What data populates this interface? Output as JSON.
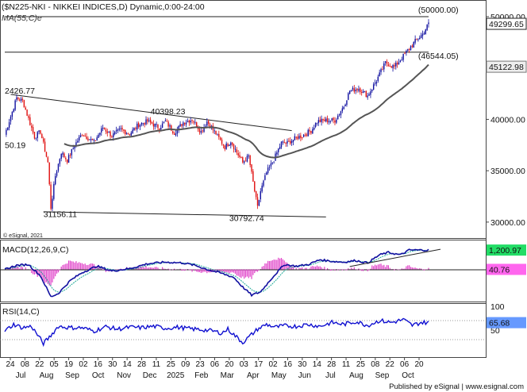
{
  "header": {
    "title": "($N225-NKI - NIKKEI INDICES,D) Dynamic,0:00-24:00",
    "ma_label": "MA(55,C)e"
  },
  "copyright": "© eSignal, 2021",
  "publisher": "Published by eSignal | www.esignal.com",
  "colors": {
    "up": "#1010a0",
    "down": "#e01010",
    "ma": "#555555",
    "macd_line": "#1010a0",
    "signal_line": "#22aa99",
    "histogram": "#e040c8",
    "rsi": "#1010d0",
    "last_price_bg": "#ffffff",
    "macd_value_bg": "#22dd66",
    "macd_hist_bg": "#ff66ee",
    "rsi_value_bg": "#6699ff"
  },
  "chart_data": [
    {
      "type": "candlestick",
      "panel": "price",
      "x_ticks": [
        "24",
        "08",
        "22",
        "05",
        "19",
        "02",
        "16",
        "30",
        "14",
        "28",
        "11",
        "25",
        "09",
        "23",
        "06",
        "20",
        "03",
        "17",
        "02",
        "16",
        "30",
        "14",
        "28",
        "11",
        "25",
        "08",
        "22",
        "06",
        "20"
      ],
      "month_labels": [
        "Jul",
        "Aug",
        "Sep",
        "Oct",
        "Nov",
        "Dec",
        "2025",
        "Feb",
        "Mar",
        "Apr",
        "May",
        "Jun",
        "Jul",
        "Aug",
        "Sep",
        "Oct"
      ],
      "y_ticks": [
        "50000.00",
        "45000.00",
        "40000.00",
        "35000.00",
        "30000.00"
      ],
      "ylim": [
        28600,
        51000
      ],
      "last_price": "49299.65",
      "ma_value": "45122.98",
      "ma_period": 55,
      "anchors": [
        {
          "i": 0,
          "v": 38500
        },
        {
          "i": 8,
          "v": 42100
        },
        {
          "i": 12,
          "v": 41800
        },
        {
          "i": 20,
          "v": 38300
        },
        {
          "i": 24,
          "v": 38800
        },
        {
          "i": 29,
          "v": 35800
        },
        {
          "i": 31,
          "v": 31400
        },
        {
          "i": 34,
          "v": 34500
        },
        {
          "i": 38,
          "v": 36800
        },
        {
          "i": 42,
          "v": 36000
        },
        {
          "i": 47,
          "v": 37500
        },
        {
          "i": 52,
          "v": 38600
        },
        {
          "i": 60,
          "v": 37800
        },
        {
          "i": 66,
          "v": 39200
        },
        {
          "i": 72,
          "v": 38400
        },
        {
          "i": 78,
          "v": 39000
        },
        {
          "i": 84,
          "v": 38600
        },
        {
          "i": 90,
          "v": 39500
        },
        {
          "i": 96,
          "v": 39800
        },
        {
          "i": 104,
          "v": 39200
        },
        {
          "i": 108,
          "v": 39800
        },
        {
          "i": 114,
          "v": 38700
        },
        {
          "i": 120,
          "v": 39700
        },
        {
          "i": 126,
          "v": 40000
        },
        {
          "i": 132,
          "v": 38800
        },
        {
          "i": 136,
          "v": 39800
        },
        {
          "i": 142,
          "v": 38600
        },
        {
          "i": 148,
          "v": 37300
        },
        {
          "i": 152,
          "v": 37900
        },
        {
          "i": 156,
          "v": 36800
        },
        {
          "i": 160,
          "v": 35800
        },
        {
          "i": 164,
          "v": 36400
        },
        {
          "i": 168,
          "v": 33000
        },
        {
          "i": 170,
          "v": 31400
        },
        {
          "i": 172,
          "v": 33000
        },
        {
          "i": 176,
          "v": 34800
        },
        {
          "i": 180,
          "v": 35800
        },
        {
          "i": 186,
          "v": 37700
        },
        {
          "i": 190,
          "v": 37700
        },
        {
          "i": 196,
          "v": 38200
        },
        {
          "i": 200,
          "v": 38400
        },
        {
          "i": 206,
          "v": 38900
        },
        {
          "i": 210,
          "v": 39800
        },
        {
          "i": 216,
          "v": 39900
        },
        {
          "i": 222,
          "v": 39900
        },
        {
          "i": 228,
          "v": 41300
        },
        {
          "i": 232,
          "v": 42800
        },
        {
          "i": 238,
          "v": 43000
        },
        {
          "i": 244,
          "v": 42300
        },
        {
          "i": 250,
          "v": 43800
        },
        {
          "i": 256,
          "v": 45500
        },
        {
          "i": 262,
          "v": 45100
        },
        {
          "i": 266,
          "v": 45800
        },
        {
          "i": 272,
          "v": 46900
        },
        {
          "i": 276,
          "v": 47600
        },
        {
          "i": 281,
          "v": 48300
        },
        {
          "i": 285,
          "v": 49300
        }
      ],
      "trendlines": [
        {
          "from": [
            4,
            42427
          ],
          "to": [
            193,
            38900
          ]
        },
        {
          "from": [
            26,
            31000
          ],
          "to": [
            216,
            30500
          ]
        },
        {
          "from": [
            0,
            50000
          ],
          "to": [
            285,
            50000
          ]
        },
        {
          "from": [
            0,
            46544
          ],
          "to": [
            285,
            46544
          ]
        }
      ],
      "annotations": [
        {
          "text": "2426.77",
          "i": 0,
          "v": 42500
        },
        {
          "text": "40398.23",
          "i": 98,
          "v": 40500
        },
        {
          "text": "31156.11",
          "i": 26,
          "v": 30500
        },
        {
          "text": "30792.74",
          "i": 151,
          "v": 30100
        },
        {
          "text": "50.19",
          "i": 0,
          "v": 37200
        },
        {
          "text": "(50000.00)",
          "i": 278,
          "v": 50400
        },
        {
          "text": "(46544.05)",
          "i": 278,
          "v": 45900
        }
      ]
    },
    {
      "type": "line",
      "panel": "macd",
      "name": "MACD(12,26,9,C)",
      "y_ticks": [],
      "macd_value": "1,200.97",
      "hist_value": "40.76",
      "anchors": [
        {
          "i": 0,
          "v": 0
        },
        {
          "i": 8,
          "v": 250
        },
        {
          "i": 16,
          "v": 300
        },
        {
          "i": 24,
          "v": -400
        },
        {
          "i": 31,
          "v": -1700
        },
        {
          "i": 36,
          "v": -1500
        },
        {
          "i": 44,
          "v": -700
        },
        {
          "i": 52,
          "v": -200
        },
        {
          "i": 62,
          "v": 200
        },
        {
          "i": 72,
          "v": -100
        },
        {
          "i": 84,
          "v": 50
        },
        {
          "i": 96,
          "v": 350
        },
        {
          "i": 108,
          "v": 450
        },
        {
          "i": 120,
          "v": 400
        },
        {
          "i": 128,
          "v": 250
        },
        {
          "i": 136,
          "v": 0
        },
        {
          "i": 146,
          "v": -250
        },
        {
          "i": 154,
          "v": -500
        },
        {
          "i": 160,
          "v": -1100
        },
        {
          "i": 166,
          "v": -1600
        },
        {
          "i": 172,
          "v": -1400
        },
        {
          "i": 180,
          "v": -500
        },
        {
          "i": 188,
          "v": 300
        },
        {
          "i": 196,
          "v": 200
        },
        {
          "i": 204,
          "v": 300
        },
        {
          "i": 212,
          "v": 600
        },
        {
          "i": 220,
          "v": 500
        },
        {
          "i": 228,
          "v": 450
        },
        {
          "i": 236,
          "v": 550
        },
        {
          "i": 244,
          "v": 400
        },
        {
          "i": 252,
          "v": 900
        },
        {
          "i": 258,
          "v": 1050
        },
        {
          "i": 266,
          "v": 900
        },
        {
          "i": 272,
          "v": 1200
        },
        {
          "i": 280,
          "v": 1200
        }
      ],
      "ylim": [
        -1900,
        1700
      ]
    },
    {
      "type": "line",
      "panel": "rsi",
      "name": "RSI(14,C)",
      "y_ticks": [
        "100",
        "50"
      ],
      "rsi_value": "65.68",
      "levels": [
        70,
        30
      ],
      "ylim": [
        0,
        100
      ],
      "anchors": [
        {
          "i": 0,
          "v": 48
        },
        {
          "i": 6,
          "v": 62
        },
        {
          "i": 12,
          "v": 55
        },
        {
          "i": 18,
          "v": 58
        },
        {
          "i": 22,
          "v": 40
        },
        {
          "i": 26,
          "v": 22
        },
        {
          "i": 30,
          "v": 35
        },
        {
          "i": 36,
          "v": 58
        },
        {
          "i": 44,
          "v": 55
        },
        {
          "i": 52,
          "v": 55
        },
        {
          "i": 60,
          "v": 48
        },
        {
          "i": 68,
          "v": 57
        },
        {
          "i": 76,
          "v": 52
        },
        {
          "i": 84,
          "v": 56
        },
        {
          "i": 92,
          "v": 55
        },
        {
          "i": 100,
          "v": 58
        },
        {
          "i": 108,
          "v": 54
        },
        {
          "i": 116,
          "v": 56
        },
        {
          "i": 124,
          "v": 53
        },
        {
          "i": 132,
          "v": 51
        },
        {
          "i": 140,
          "v": 48
        },
        {
          "i": 146,
          "v": 44
        },
        {
          "i": 150,
          "v": 52
        },
        {
          "i": 156,
          "v": 35
        },
        {
          "i": 160,
          "v": 24
        },
        {
          "i": 164,
          "v": 35
        },
        {
          "i": 170,
          "v": 52
        },
        {
          "i": 176,
          "v": 62
        },
        {
          "i": 182,
          "v": 56
        },
        {
          "i": 188,
          "v": 59
        },
        {
          "i": 196,
          "v": 58
        },
        {
          "i": 204,
          "v": 62
        },
        {
          "i": 212,
          "v": 58
        },
        {
          "i": 220,
          "v": 66
        },
        {
          "i": 228,
          "v": 62
        },
        {
          "i": 236,
          "v": 68
        },
        {
          "i": 244,
          "v": 60
        },
        {
          "i": 252,
          "v": 70
        },
        {
          "i": 260,
          "v": 66
        },
        {
          "i": 268,
          "v": 72
        },
        {
          "i": 274,
          "v": 60
        },
        {
          "i": 280,
          "v": 66
        }
      ]
    }
  ]
}
